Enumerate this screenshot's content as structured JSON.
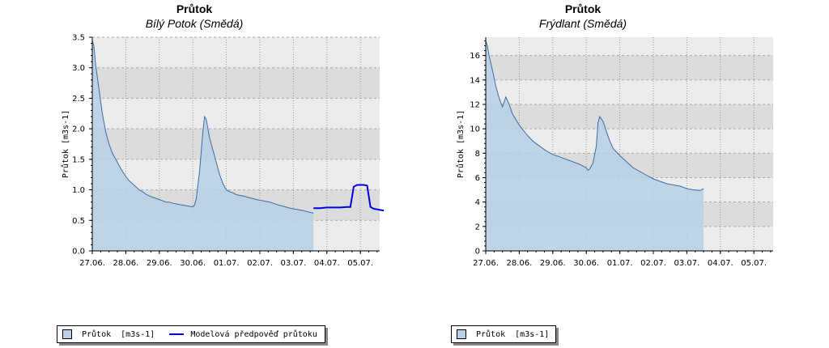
{
  "charts": [
    {
      "title": "Průtok",
      "subtitle": "Bílý Potok (Smědá)",
      "ylabel": "Průtok [m3s-1]",
      "legend": [
        {
          "label": "Průtok  [m3s-1]",
          "kind": "area"
        },
        {
          "label": "Modelová předpověď průtoku",
          "kind": "line"
        }
      ]
    },
    {
      "title": "Průtok",
      "subtitle": "Frýdlant (Smědá)",
      "ylabel": "Průtok [m3s-1]",
      "legend": [
        {
          "label": "Průtok  [m3s-1]",
          "kind": "area"
        }
      ]
    }
  ],
  "colors": {
    "area_fill": "#b9d0e6",
    "area_line": "#3a6ea5",
    "forecast": "#0000dd",
    "band_dark": "#dcdcdc",
    "band_light": "#ececec"
  },
  "chart_data": [
    {
      "type": "area",
      "title": "Průtok",
      "subtitle": "Bílý Potok (Smědá)",
      "xlabel": "",
      "ylabel": "Průtok [m3s-1]",
      "x_ticks": [
        "27.06.",
        "28.06.",
        "29.06.",
        "30.06.",
        "01.07.",
        "02.07.",
        "03.07.",
        "04.07.",
        "05.07."
      ],
      "xlim": [
        0,
        8.85
      ],
      "ylim": [
        0,
        3.5
      ],
      "y_ticks": [
        0.0,
        0.5,
        1.0,
        1.5,
        2.0,
        2.5,
        3.0,
        3.5
      ],
      "grid": true,
      "legend_position": "bottom",
      "series": [
        {
          "name": "Průtok  [m3s-1]",
          "kind": "area",
          "x": [
            0.0,
            0.05,
            0.1,
            0.2,
            0.3,
            0.4,
            0.5,
            0.6,
            0.7,
            0.8,
            0.9,
            1.0,
            1.1,
            1.2,
            1.3,
            1.4,
            1.5,
            1.6,
            1.7,
            1.8,
            1.9,
            2.0,
            2.1,
            2.2,
            2.3,
            2.4,
            2.5,
            2.6,
            2.7,
            2.8,
            2.9,
            3.0,
            3.05,
            3.1,
            3.2,
            3.3,
            3.35,
            3.4,
            3.45,
            3.5,
            3.6,
            3.7,
            3.8,
            3.9,
            4.0,
            4.1,
            4.2,
            4.3,
            4.5,
            4.7,
            4.9,
            5.1,
            5.3,
            5.5,
            5.7,
            5.9,
            6.1,
            6.3,
            6.5,
            6.6
          ],
          "values": [
            3.45,
            3.35,
            3.05,
            2.65,
            2.25,
            1.95,
            1.75,
            1.6,
            1.5,
            1.4,
            1.3,
            1.22,
            1.15,
            1.1,
            1.05,
            1.0,
            0.97,
            0.93,
            0.9,
            0.88,
            0.86,
            0.84,
            0.82,
            0.8,
            0.8,
            0.78,
            0.77,
            0.76,
            0.75,
            0.74,
            0.73,
            0.72,
            0.75,
            0.85,
            1.3,
            1.95,
            2.2,
            2.15,
            2.0,
            1.85,
            1.65,
            1.45,
            1.25,
            1.1,
            1.0,
            0.97,
            0.95,
            0.92,
            0.9,
            0.87,
            0.84,
            0.82,
            0.8,
            0.76,
            0.73,
            0.7,
            0.68,
            0.66,
            0.63,
            0.62
          ]
        },
        {
          "name": "Modelová předpověď průtoku",
          "kind": "line",
          "x": [
            6.6,
            6.8,
            7.0,
            7.2,
            7.4,
            7.6,
            7.7,
            7.8,
            7.9,
            8.1,
            8.2,
            8.3,
            8.4,
            8.5,
            8.6,
            8.7
          ],
          "values": [
            0.7,
            0.7,
            0.71,
            0.71,
            0.71,
            0.72,
            0.72,
            1.05,
            1.08,
            1.08,
            1.07,
            0.72,
            0.69,
            0.68,
            0.67,
            0.66
          ]
        }
      ]
    },
    {
      "type": "area",
      "title": "Průtok",
      "subtitle": "Frýdlant (Smědá)",
      "xlabel": "",
      "ylabel": "Průtok [m3s-1]",
      "x_ticks": [
        "27.06.",
        "28.06.",
        "29.06.",
        "30.06.",
        "01.07.",
        "02.07.",
        "03.07.",
        "04.07.",
        "05.07."
      ],
      "xlim": [
        0,
        8.5
      ],
      "ylim": [
        0,
        17.5
      ],
      "y_ticks": [
        0,
        2,
        4,
        6,
        8,
        10,
        12,
        14,
        16
      ],
      "grid": true,
      "legend_position": "bottom",
      "series": [
        {
          "name": "Průtok  [m3s-1]",
          "kind": "area",
          "x": [
            0.0,
            0.05,
            0.1,
            0.2,
            0.3,
            0.4,
            0.5,
            0.6,
            0.7,
            0.8,
            1.0,
            1.2,
            1.4,
            1.6,
            1.8,
            2.0,
            2.2,
            2.4,
            2.6,
            2.8,
            3.0,
            3.05,
            3.1,
            3.2,
            3.3,
            3.35,
            3.4,
            3.5,
            3.6,
            3.7,
            3.8,
            4.0,
            4.2,
            4.4,
            4.6,
            4.8,
            5.0,
            5.2,
            5.4,
            5.6,
            5.8,
            6.0,
            6.2,
            6.4,
            6.5
          ],
          "values": [
            17.2,
            16.8,
            16.0,
            14.8,
            13.5,
            12.5,
            11.8,
            12.6,
            12.0,
            11.2,
            10.3,
            9.6,
            9.0,
            8.6,
            8.2,
            7.9,
            7.7,
            7.5,
            7.3,
            7.1,
            6.8,
            6.6,
            6.7,
            7.2,
            8.6,
            10.5,
            11.0,
            10.6,
            9.8,
            9.0,
            8.4,
            7.8,
            7.3,
            6.8,
            6.5,
            6.2,
            5.9,
            5.7,
            5.5,
            5.4,
            5.3,
            5.1,
            5.0,
            4.95,
            5.1
          ]
        }
      ]
    }
  ]
}
